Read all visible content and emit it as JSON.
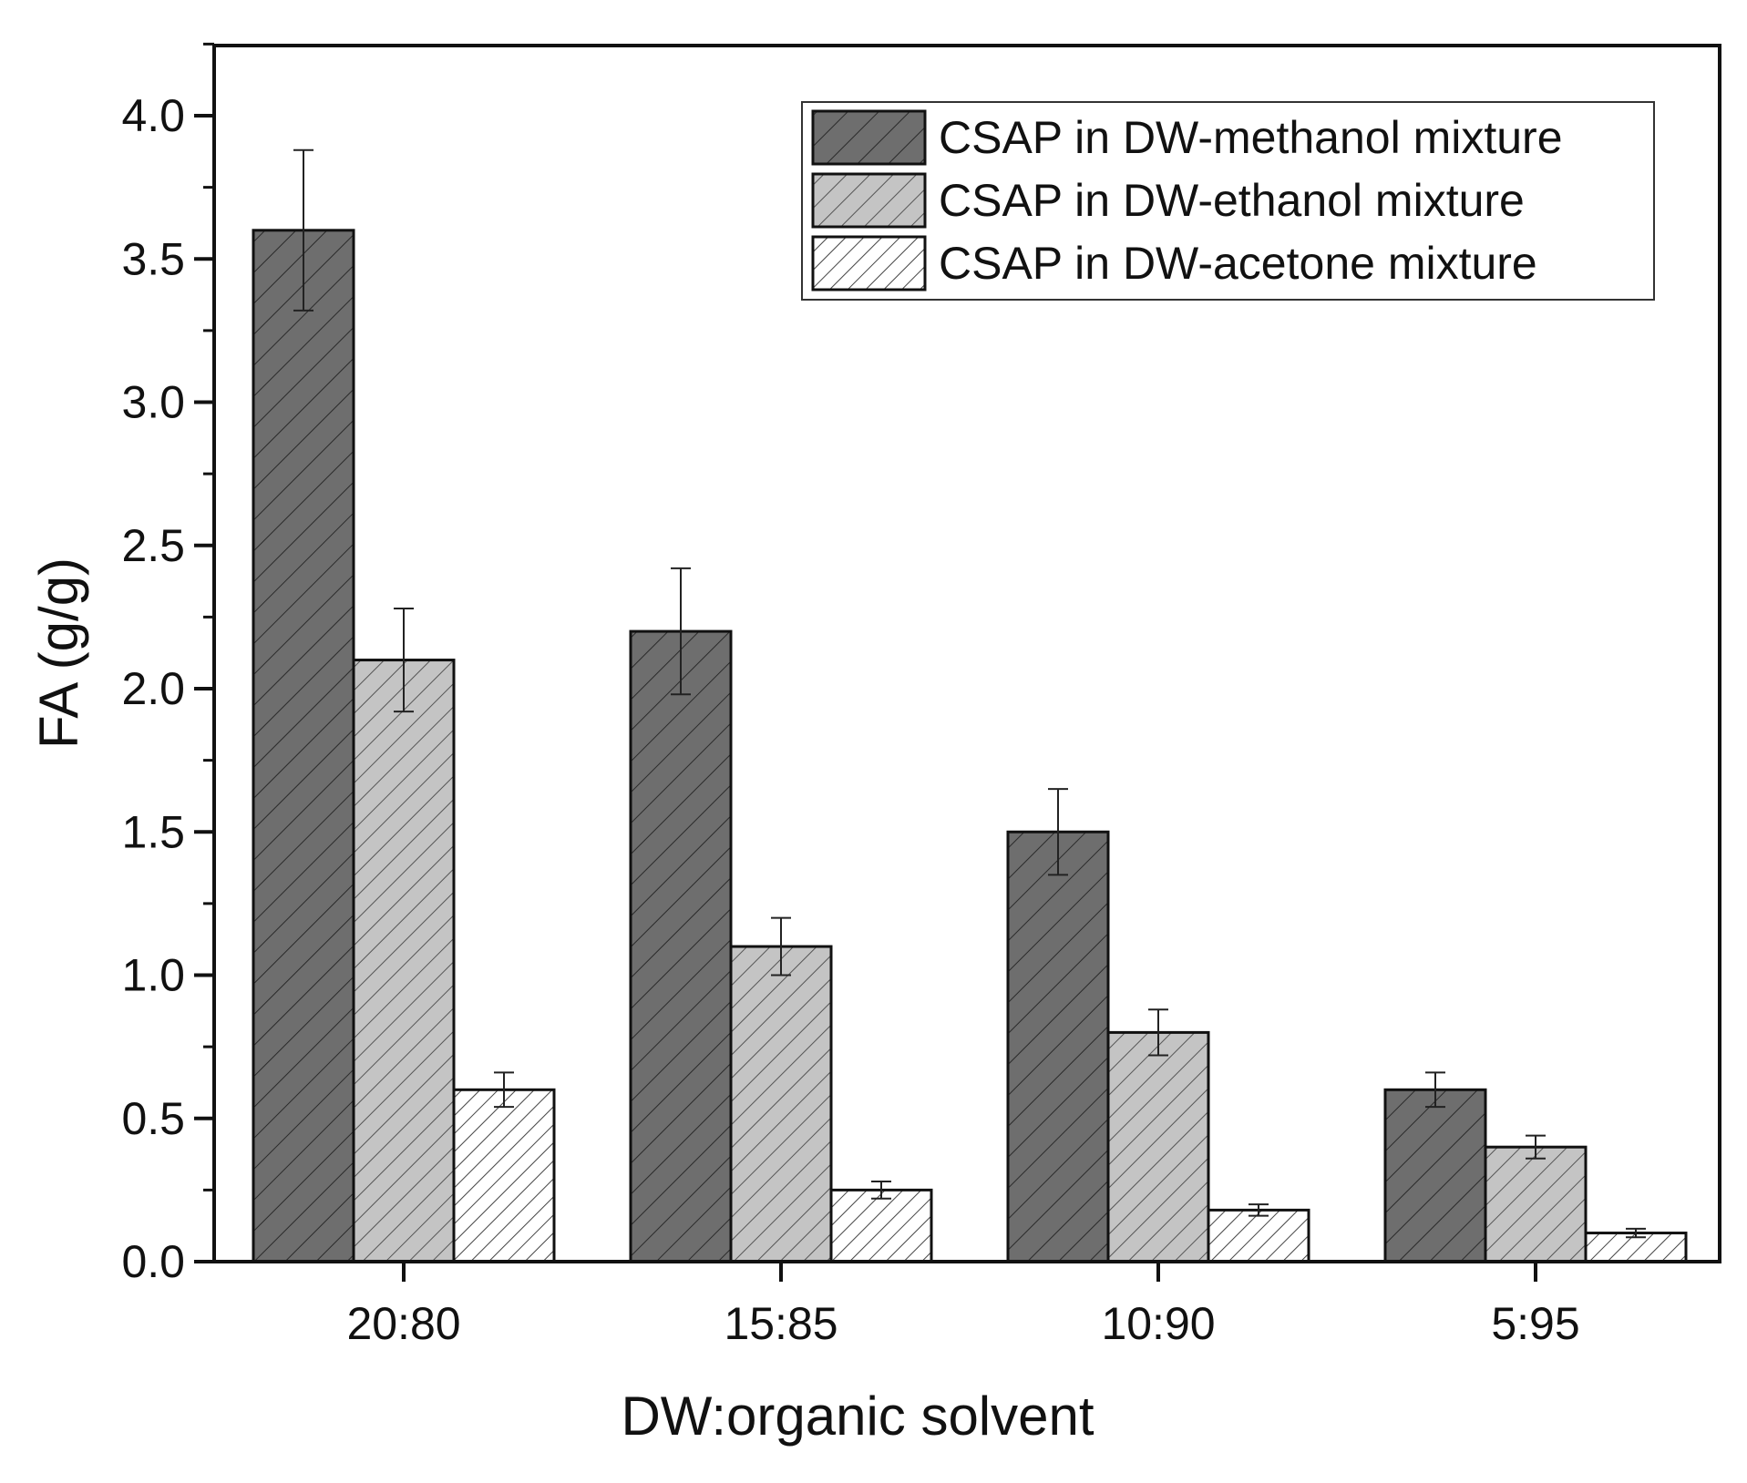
{
  "chart_data": {
    "type": "bar",
    "title": "",
    "xlabel": "DW:organic solvent",
    "ylabel": "FA (g/g)",
    "ylim": [
      0,
      4.25
    ],
    "yticks": [
      0.0,
      0.5,
      1.0,
      1.5,
      2.0,
      2.5,
      3.0,
      3.5,
      4.0
    ],
    "ytick_labels": [
      "0.0",
      "0.5",
      "1.0",
      "1.5",
      "2.0",
      "2.5",
      "3.0",
      "3.5",
      "4.0"
    ],
    "categories": [
      "20:80",
      "15:85",
      "10:90",
      "5:95"
    ],
    "legend_position": "top-right",
    "grid": false,
    "series": [
      {
        "name": "CSAP in DW-methanol mixture",
        "fill": "#6e6e6e",
        "values": [
          3.6,
          2.2,
          1.5,
          0.6
        ],
        "errors": [
          0.28,
          0.22,
          0.15,
          0.06
        ]
      },
      {
        "name": "CSAP in DW-ethanol mixture",
        "fill": "#c4c4c4",
        "values": [
          2.1,
          1.1,
          0.8,
          0.4
        ],
        "errors": [
          0.18,
          0.1,
          0.08,
          0.04
        ]
      },
      {
        "name": "CSAP in DW-acetone mixture",
        "fill": "#ffffff",
        "values": [
          0.6,
          0.25,
          0.18,
          0.1
        ],
        "errors": [
          0.06,
          0.03,
          0.02,
          0.015
        ]
      }
    ]
  }
}
